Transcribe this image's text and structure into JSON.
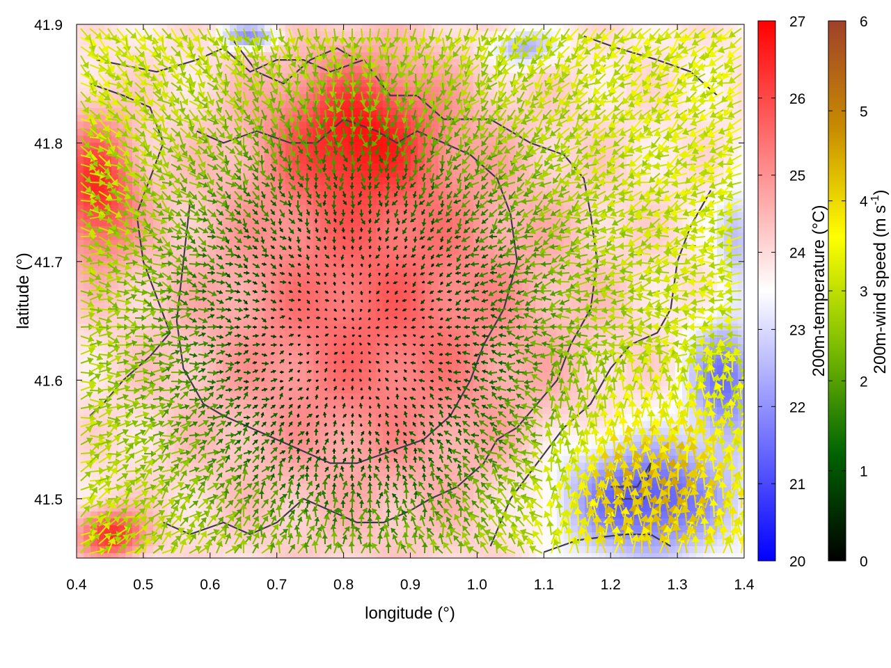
{
  "chart_data": {
    "type": "heatmap",
    "subtype": "temperature field with wind vectors and contour outlines",
    "xlabel": "longitude (°)",
    "ylabel": "latitude (°)",
    "xlim": [
      0.4,
      1.4
    ],
    "ylim": [
      41.45,
      41.9
    ],
    "xticks": [
      "0.4",
      "0.5",
      "0.6",
      "0.7",
      "0.8",
      "0.9",
      "1.0",
      "1.1",
      "1.2",
      "1.3",
      "1.4"
    ],
    "yticks": [
      "41.5",
      "41.6",
      "41.7",
      "41.8",
      "41.9"
    ],
    "grid": false,
    "temperature_colorbar": {
      "label": "200m-temperature (°C)",
      "range": [
        20,
        27
      ],
      "ticks": [
        "20",
        "21",
        "22",
        "23",
        "24",
        "25",
        "26",
        "27"
      ],
      "colors": [
        "#0000ff",
        "#ffffff",
        "#ff0000"
      ]
    },
    "wind_colorbar": {
      "label": "200m-wind speed (m s-1)",
      "label_main": "200m-wind speed (m s",
      "label_sup": "-1",
      "label_end": ")",
      "range": [
        0,
        6
      ],
      "ticks": [
        "0",
        "1",
        "2",
        "3",
        "4",
        "5",
        "6"
      ],
      "colors": [
        "#000000",
        "#006400",
        "#7fbf00",
        "#ffff00",
        "#c88c00",
        "#a0402a"
      ]
    },
    "temperature_features": [
      {
        "lon": 0.85,
        "lat": 41.66,
        "T": 25.6,
        "radius_lon": 0.28,
        "radius_lat": 0.17
      },
      {
        "lon": 0.82,
        "lat": 41.81,
        "T": 26.0,
        "radius_lon": 0.12,
        "radius_lat": 0.06
      },
      {
        "lon": 0.43,
        "lat": 41.76,
        "T": 26.3,
        "radius_lon": 0.06,
        "radius_lat": 0.06
      },
      {
        "lon": 0.45,
        "lat": 41.47,
        "T": 26.4,
        "radius_lon": 0.05,
        "radius_lat": 0.02
      },
      {
        "lon": 1.25,
        "lat": 41.5,
        "T": 21.0,
        "radius_lon": 0.13,
        "radius_lat": 0.05
      },
      {
        "lon": 1.37,
        "lat": 41.6,
        "T": 21.5,
        "radius_lon": 0.05,
        "radius_lat": 0.05
      },
      {
        "lon": 0.66,
        "lat": 41.89,
        "T": 21.8,
        "radius_lon": 0.04,
        "radius_lat": 0.01
      },
      {
        "lon": 1.07,
        "lat": 41.88,
        "T": 22.2,
        "radius_lon": 0.05,
        "radius_lat": 0.015
      },
      {
        "lon": 1.39,
        "lat": 41.72,
        "T": 22.5,
        "radius_lon": 0.03,
        "radius_lat": 0.04
      }
    ],
    "wind_field": {
      "calm_center": {
        "lon": 0.82,
        "lat": 41.64
      },
      "calm_radius": {
        "lon": 0.28,
        "lat": 0.17
      },
      "outer_speed": 3.2,
      "southeast_jet": {
        "lon": 1.25,
        "lat": 41.5,
        "speed": 4.5
      }
    },
    "contours": [
      {
        "name": "outer-outline",
        "points": [
          [
            0.43,
            41.87
          ],
          [
            0.52,
            41.86
          ],
          [
            0.58,
            41.87
          ],
          [
            0.62,
            41.88
          ],
          [
            0.66,
            41.86
          ],
          [
            0.7,
            41.87
          ],
          [
            0.74,
            41.87
          ],
          [
            0.78,
            41.86
          ],
          [
            0.83,
            41.87
          ],
          [
            0.87,
            41.84
          ],
          [
            0.91,
            41.84
          ],
          [
            0.95,
            41.82
          ],
          [
            1.02,
            41.82
          ],
          [
            1.08,
            41.8
          ],
          [
            1.13,
            41.79
          ],
          [
            1.16,
            41.77
          ],
          [
            1.17,
            41.74
          ],
          [
            1.18,
            41.7
          ],
          [
            1.17,
            41.66
          ],
          [
            1.14,
            41.63
          ],
          [
            1.12,
            41.6
          ],
          [
            1.09,
            41.58
          ],
          [
            1.06,
            41.56
          ],
          [
            1.03,
            41.55
          ],
          [
            1.01,
            41.53
          ],
          [
            0.97,
            41.51
          ],
          [
            0.93,
            41.5
          ],
          [
            0.9,
            41.49
          ],
          [
            0.86,
            41.48
          ],
          [
            0.82,
            41.48
          ],
          [
            0.78,
            41.49
          ],
          [
            0.74,
            41.5
          ],
          [
            0.7,
            41.48
          ],
          [
            0.66,
            41.47
          ],
          [
            0.62,
            41.48
          ],
          [
            0.57,
            41.47
          ],
          [
            0.53,
            41.48
          ]
        ]
      },
      {
        "name": "inner-outline",
        "points": [
          [
            0.58,
            41.81
          ],
          [
            0.62,
            41.8
          ],
          [
            0.67,
            41.81
          ],
          [
            0.72,
            41.8
          ],
          [
            0.76,
            41.8
          ],
          [
            0.8,
            41.82
          ],
          [
            0.85,
            41.81
          ],
          [
            0.88,
            41.8
          ],
          [
            0.91,
            41.81
          ],
          [
            0.95,
            41.8
          ],
          [
            0.99,
            41.79
          ],
          [
            1.03,
            41.77
          ],
          [
            1.05,
            41.74
          ],
          [
            1.06,
            41.7
          ],
          [
            1.04,
            41.66
          ],
          [
            1.01,
            41.63
          ],
          [
            0.99,
            41.6
          ],
          [
            0.96,
            41.57
          ],
          [
            0.92,
            41.55
          ],
          [
            0.87,
            41.54
          ],
          [
            0.82,
            41.53
          ],
          [
            0.78,
            41.53
          ],
          [
            0.74,
            41.54
          ],
          [
            0.7,
            41.55
          ],
          [
            0.66,
            41.56
          ],
          [
            0.62,
            41.57
          ],
          [
            0.59,
            41.58
          ],
          [
            0.56,
            41.61
          ],
          [
            0.55,
            41.65
          ],
          [
            0.56,
            41.7
          ],
          [
            0.57,
            41.75
          ]
        ]
      },
      {
        "name": "west-outline",
        "points": [
          [
            0.42,
            41.85
          ],
          [
            0.47,
            41.84
          ],
          [
            0.51,
            41.83
          ],
          [
            0.53,
            41.8
          ],
          [
            0.51,
            41.77
          ],
          [
            0.49,
            41.74
          ],
          [
            0.5,
            41.7
          ],
          [
            0.52,
            41.67
          ],
          [
            0.54,
            41.64
          ],
          [
            0.51,
            41.62
          ],
          [
            0.47,
            41.6
          ],
          [
            0.44,
            41.58
          ],
          [
            0.42,
            41.57
          ]
        ]
      },
      {
        "name": "east-outline",
        "points": [
          [
            1.02,
            41.46
          ],
          [
            1.05,
            41.5
          ],
          [
            1.09,
            41.53
          ],
          [
            1.13,
            41.56
          ],
          [
            1.17,
            41.58
          ],
          [
            1.2,
            41.61
          ],
          [
            1.23,
            41.63
          ],
          [
            1.27,
            41.64
          ],
          [
            1.29,
            41.66
          ],
          [
            1.3,
            41.7
          ],
          [
            1.32,
            41.73
          ],
          [
            1.35,
            41.76
          ]
        ]
      },
      {
        "name": "southeast-outline",
        "points": [
          [
            1.1,
            41.455
          ],
          [
            1.15,
            41.465
          ],
          [
            1.22,
            41.47
          ],
          [
            1.26,
            41.47
          ],
          [
            1.29,
            41.46
          ]
        ]
      },
      {
        "name": "southeast-loop",
        "points": [
          [
            1.2,
            41.51
          ],
          [
            1.24,
            41.51
          ],
          [
            1.26,
            41.53
          ],
          [
            1.25,
            41.5
          ],
          [
            1.21,
            41.5
          ]
        ]
      },
      {
        "name": "north-ridge",
        "points": [
          [
            0.63,
            41.89
          ],
          [
            0.67,
            41.86
          ],
          [
            0.71,
            41.85
          ],
          [
            0.75,
            41.87
          ],
          [
            0.79,
            41.88
          ],
          [
            0.82,
            41.87
          ]
        ]
      },
      {
        "name": "northeast-ridge",
        "points": [
          [
            1.16,
            41.89
          ],
          [
            1.21,
            41.88
          ],
          [
            1.27,
            41.87
          ],
          [
            1.32,
            41.86
          ],
          [
            1.36,
            41.84
          ]
        ]
      }
    ]
  }
}
